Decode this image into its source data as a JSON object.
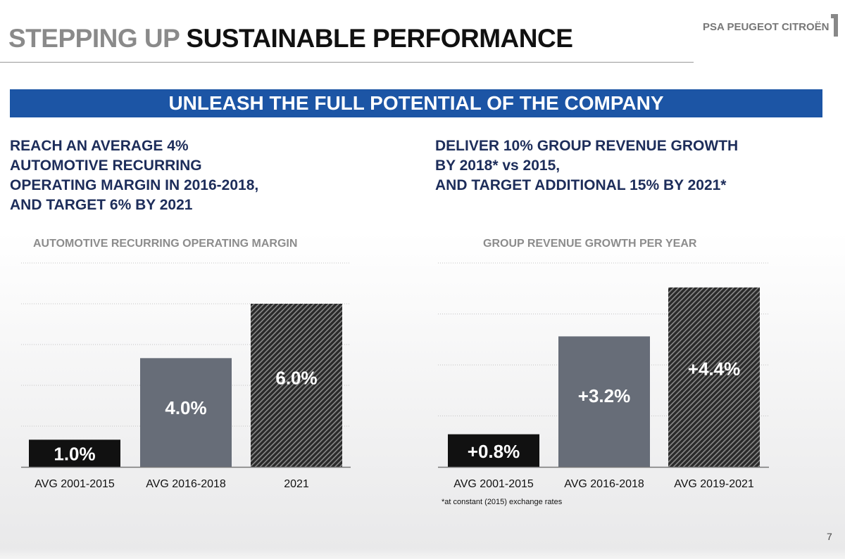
{
  "title": {
    "part1": "STEPPING UP",
    "part2": "SUSTAINABLE PERFORMANCE"
  },
  "logo": "PSA PEUGEOT CITROËN",
  "banner": "UNLEASH THE FULL POTENTIAL OF THE COMPANY",
  "left_goal": [
    "REACH AN AVERAGE 4%",
    "AUTOMOTIVE RECURRING",
    "OPERATING MARGIN IN 2016-2018,",
    "AND TARGET 6% BY 2021"
  ],
  "right_goal": [
    "DELIVER 10% GROUP REVENUE GROWTH",
    "BY 2018* vs 2015,",
    "AND TARGET ADDITIONAL 15% BY 2021*"
  ],
  "footnote": "*at constant (2015) exchange rates",
  "page_number": "7",
  "colors": {
    "banner": "#1c55a5",
    "navy": "#1d2d5a",
    "black_bar": "#111111",
    "gray_bar": "#676d78",
    "hatched": "#3a3a3a"
  },
  "chart_data": [
    {
      "type": "bar",
      "title": "AUTOMOTIVE RECURRING OPERATING MARGIN",
      "categories": [
        "AVG 2001-2015",
        "AVG 2016-2018",
        "2021"
      ],
      "values": [
        1.0,
        4.0,
        6.0
      ],
      "labels": [
        "1.0%",
        "4.0%",
        "6.0%"
      ],
      "styles": [
        "black",
        "gray",
        "hatched"
      ],
      "ylim": [
        0,
        7.5
      ],
      "grid": true,
      "xlabel": "",
      "ylabel": ""
    },
    {
      "type": "bar",
      "title": "GROUP REVENUE GROWTH PER YEAR",
      "categories": [
        "AVG 2001-2015",
        "AVG 2016-2018",
        "AVG 2019-2021"
      ],
      "values": [
        0.8,
        3.2,
        4.4
      ],
      "labels": [
        "+0.8%",
        "+3.2%",
        "+4.4%"
      ],
      "styles": [
        "black",
        "gray",
        "hatched"
      ],
      "ylim": [
        0,
        5
      ],
      "grid": true,
      "xlabel": "",
      "ylabel": ""
    }
  ]
}
